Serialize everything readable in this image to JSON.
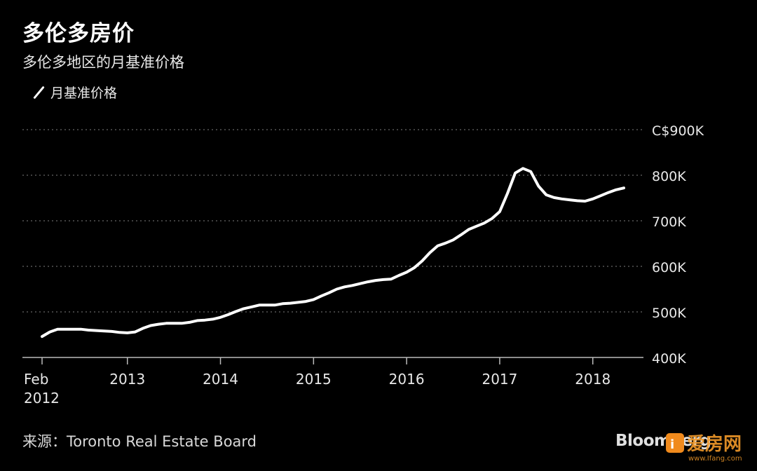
{
  "header": {
    "title": "多伦多房价",
    "subtitle": "多伦多地区的月基准价格"
  },
  "legend": {
    "label": "月基准价格"
  },
  "footer": {
    "source": "来源：Toronto Real Estate Board",
    "brand": "Bloomberg",
    "watermark": "爱房网",
    "watermark_url": "www.Ifang.com"
  },
  "colors": {
    "background": "#000000",
    "line": "#ffffff",
    "grid": "#666666",
    "text": "#e8e8e8"
  },
  "chart_data": {
    "type": "line",
    "title": "多伦多房价",
    "subtitle": "多伦多地区的月基准价格",
    "xlabel": "",
    "ylabel": "",
    "ylim": [
      400000,
      900000
    ],
    "xlim": [
      "2012-02",
      "2018-05"
    ],
    "grid": true,
    "legend_position": "top-left",
    "y_ticks": [
      400000,
      500000,
      600000,
      700000,
      800000,
      900000
    ],
    "y_tick_labels": [
      "400K",
      "500K",
      "600K",
      "700K",
      "800K",
      "C$900K"
    ],
    "x_ticks": [
      "2012-02",
      "2013-01",
      "2014-01",
      "2015-01",
      "2016-01",
      "2017-01",
      "2018-01"
    ],
    "x_tick_labels": [
      "Feb\n2012",
      "2013",
      "2014",
      "2015",
      "2016",
      "2017",
      "2018"
    ],
    "series": [
      {
        "name": "月基准价格",
        "x": [
          "2012-02",
          "2012-03",
          "2012-04",
          "2012-05",
          "2012-06",
          "2012-07",
          "2012-08",
          "2012-09",
          "2012-10",
          "2012-11",
          "2012-12",
          "2013-01",
          "2013-02",
          "2013-03",
          "2013-04",
          "2013-05",
          "2013-06",
          "2013-07",
          "2013-08",
          "2013-09",
          "2013-10",
          "2013-11",
          "2013-12",
          "2014-01",
          "2014-02",
          "2014-03",
          "2014-04",
          "2014-05",
          "2014-06",
          "2014-07",
          "2014-08",
          "2014-09",
          "2014-10",
          "2014-11",
          "2014-12",
          "2015-01",
          "2015-02",
          "2015-03",
          "2015-04",
          "2015-05",
          "2015-06",
          "2015-07",
          "2015-08",
          "2015-09",
          "2015-10",
          "2015-11",
          "2015-12",
          "2016-01",
          "2016-02",
          "2016-03",
          "2016-04",
          "2016-05",
          "2016-06",
          "2016-07",
          "2016-08",
          "2016-09",
          "2016-10",
          "2016-11",
          "2016-12",
          "2017-01",
          "2017-02",
          "2017-03",
          "2017-04",
          "2017-05",
          "2017-06",
          "2017-07",
          "2017-08",
          "2017-09",
          "2017-10",
          "2017-11",
          "2017-12",
          "2018-01",
          "2018-02",
          "2018-03",
          "2018-04",
          "2018-05"
        ],
        "values": [
          446000,
          456000,
          462000,
          462000,
          462000,
          462000,
          460000,
          459000,
          458000,
          457000,
          455000,
          454000,
          456000,
          464000,
          470000,
          473000,
          475000,
          475000,
          475000,
          477000,
          481000,
          482000,
          484000,
          488000,
          494000,
          501000,
          507000,
          511000,
          515000,
          515000,
          515000,
          518000,
          519000,
          521000,
          523000,
          527000,
          535000,
          542000,
          550000,
          555000,
          558000,
          562000,
          566000,
          569000,
          571000,
          572000,
          580000,
          587000,
          597000,
          612000,
          630000,
          645000,
          651000,
          658000,
          669000,
          681000,
          688000,
          695000,
          705000,
          720000,
          760000,
          805000,
          815000,
          808000,
          776000,
          757000,
          751000,
          748000,
          746000,
          744000,
          743000,
          748000,
          755000,
          762000,
          768000,
          772000
        ]
      }
    ]
  }
}
